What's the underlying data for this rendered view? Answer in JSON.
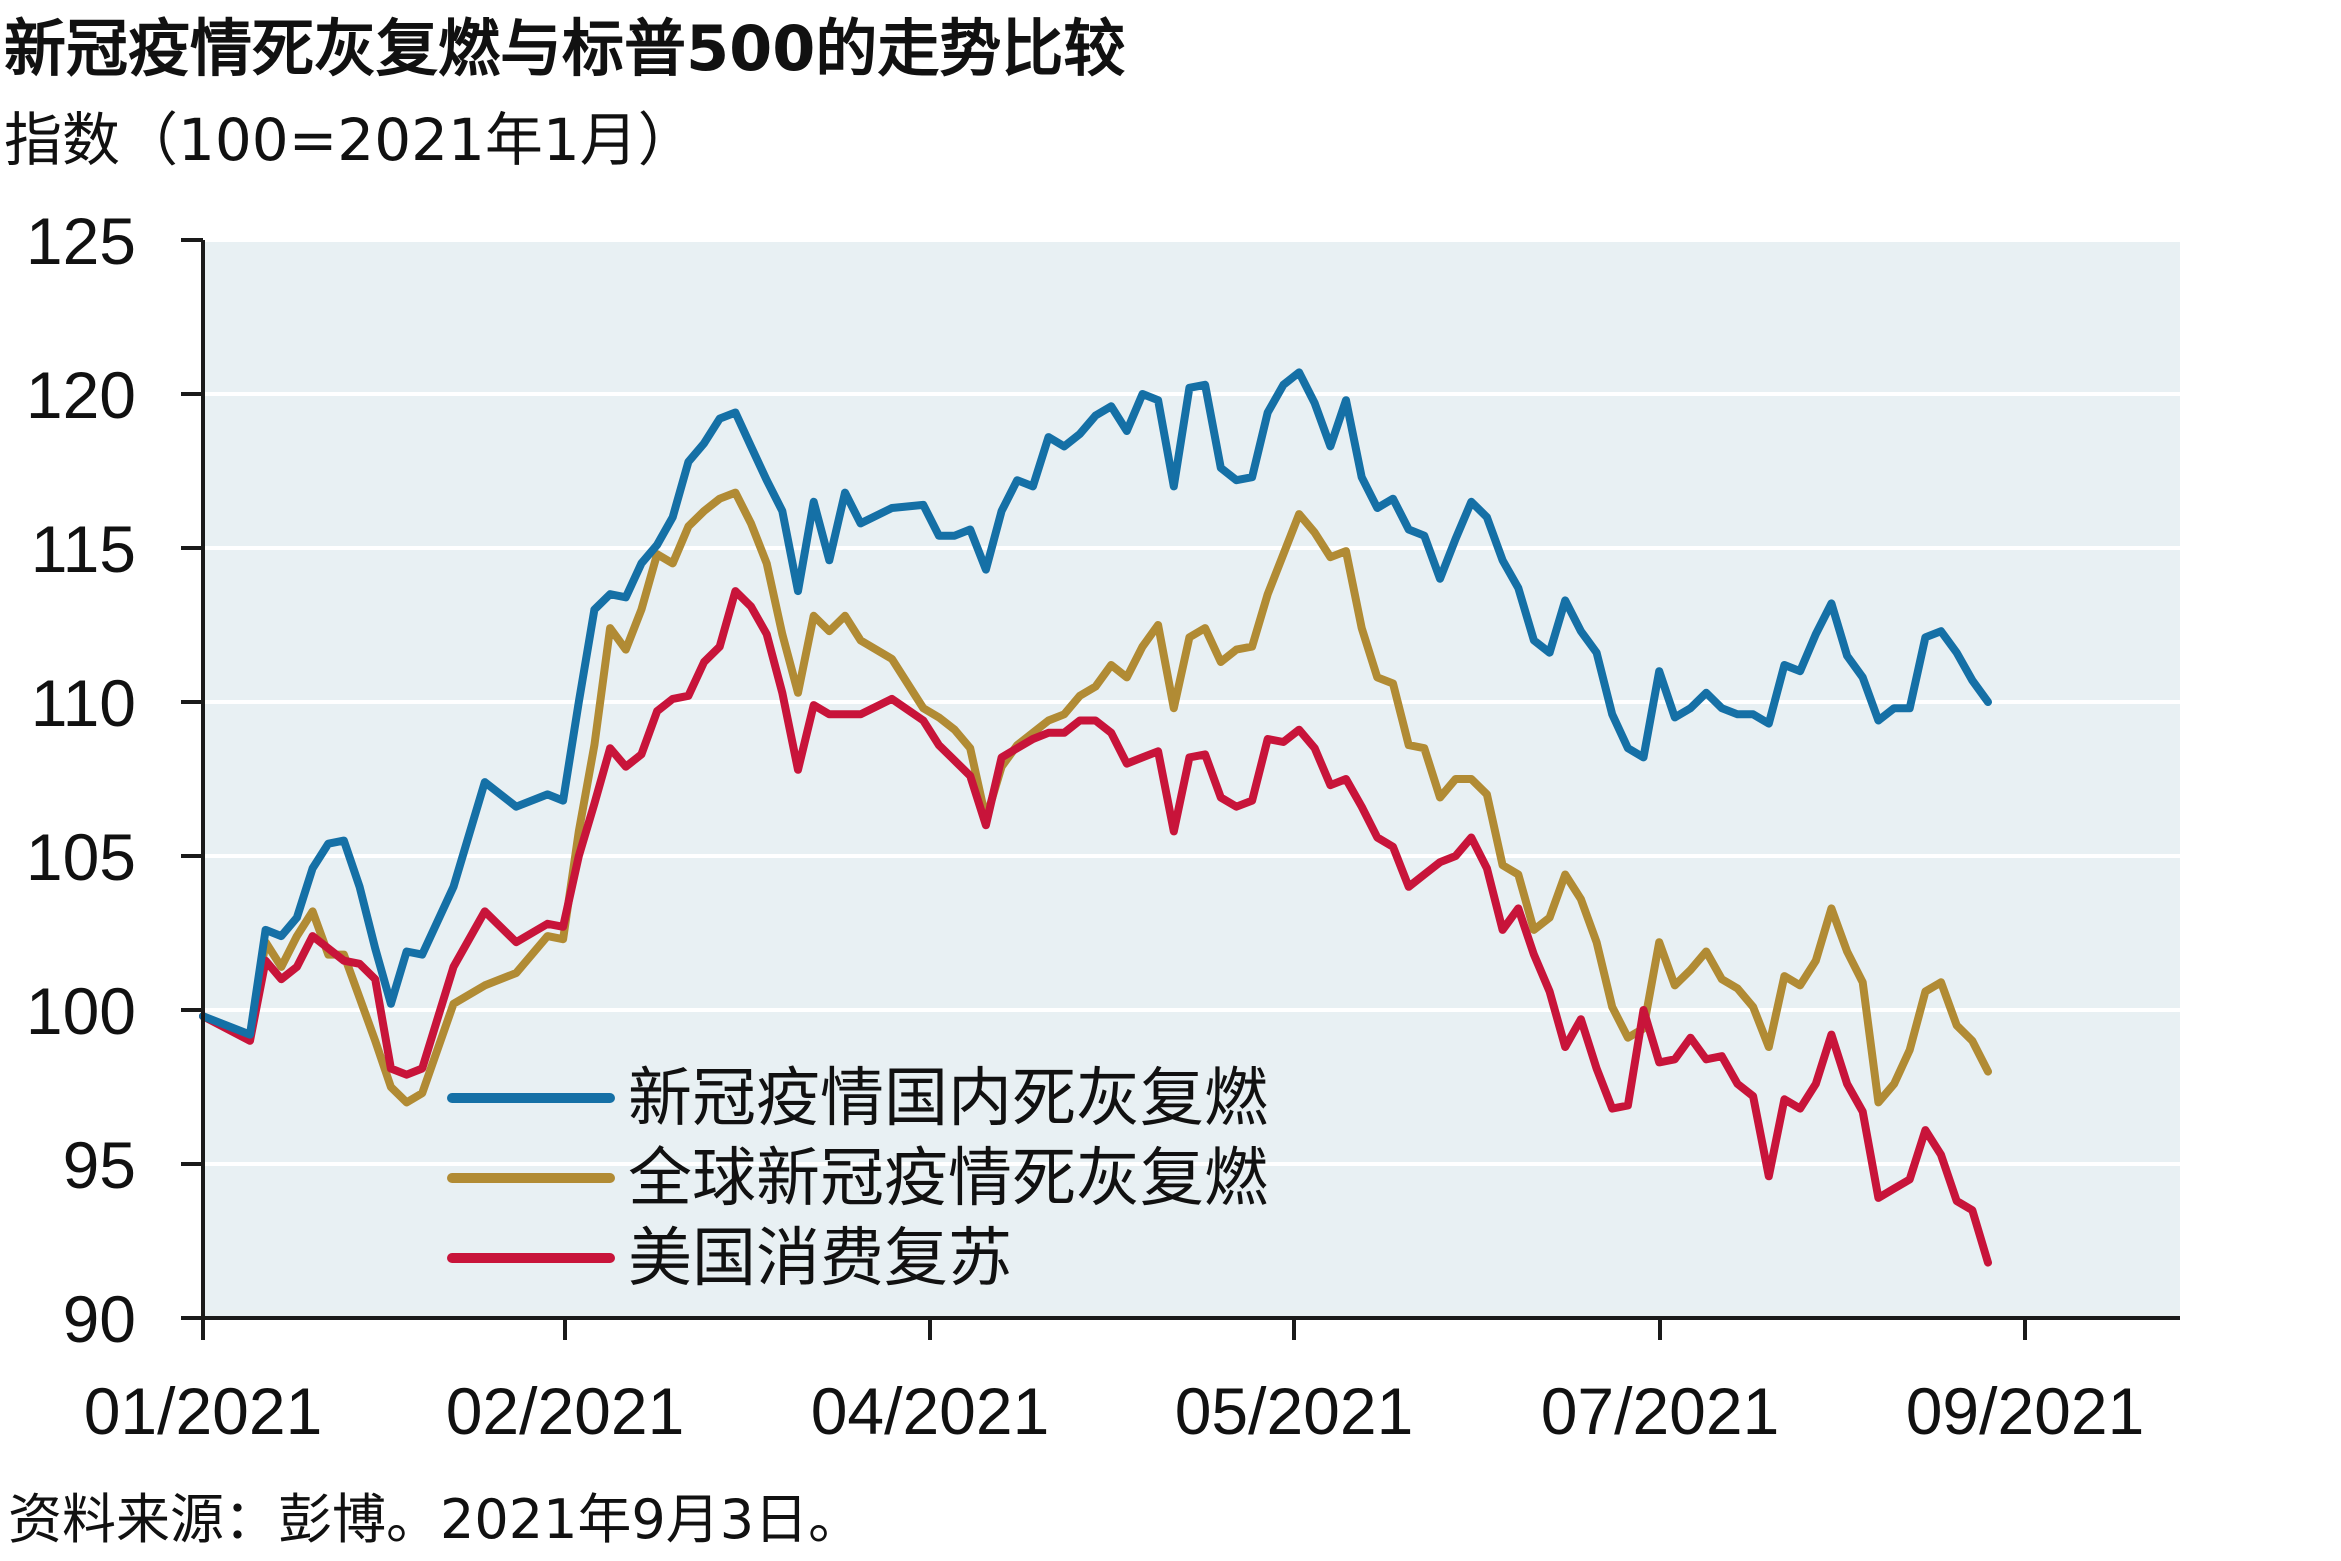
{
  "chart_data": {
    "type": "line",
    "title": "新冠疫情死灰复燃与标普500的走势比较",
    "subtitle": "指数（100=2021年1月）",
    "source": "资料来源：彭博。2021年9月3日。",
    "y_ticks": [
      "125",
      "120",
      "115",
      "110",
      "105",
      "100",
      "95",
      "90"
    ],
    "x_ticks": [
      "01/2021",
      "02/2021",
      "04/2021",
      "05/2021",
      "07/2021",
      "09/2021"
    ],
    "ylim": [
      90,
      125
    ],
    "grid": true,
    "legend_position": "bottom-left",
    "colors": {
      "background": "#e8f0f3",
      "grid": "#ffffff",
      "axis": "#1a1a1a",
      "series_1": "#1570a6",
      "series_2": "#b18b34",
      "series_3": "#c8143a"
    },
    "series": [
      {
        "name": "新冠疫情国内死灰复燃",
        "points": [
          [
            0,
            99.8
          ],
          [
            3,
            99.2
          ],
          [
            4,
            102.6
          ],
          [
            5,
            102.4
          ],
          [
            6,
            103.0
          ],
          [
            7,
            104.6
          ],
          [
            8,
            105.4
          ],
          [
            9,
            105.5
          ],
          [
            10,
            104.0
          ],
          [
            11,
            102.0
          ],
          [
            12,
            100.2
          ],
          [
            13,
            101.9
          ],
          [
            14,
            101.8
          ],
          [
            16,
            104.0
          ],
          [
            18,
            107.4
          ],
          [
            20,
            106.6
          ],
          [
            22,
            107.0
          ],
          [
            23,
            106.8
          ],
          [
            24,
            110.0
          ],
          [
            25,
            113.0
          ],
          [
            26,
            113.5
          ],
          [
            27,
            113.4
          ],
          [
            28,
            114.5
          ],
          [
            29,
            115.1
          ],
          [
            30,
            116.0
          ],
          [
            31,
            117.8
          ],
          [
            32,
            118.4
          ],
          [
            33,
            119.2
          ],
          [
            34,
            119.4
          ],
          [
            35,
            118.3
          ],
          [
            36,
            117.2
          ],
          [
            37,
            116.2
          ],
          [
            38,
            113.6
          ],
          [
            39,
            116.5
          ],
          [
            40,
            114.6
          ],
          [
            41,
            116.8
          ],
          [
            42,
            115.8
          ],
          [
            44,
            116.3
          ],
          [
            46,
            116.4
          ],
          [
            47,
            115.4
          ],
          [
            48,
            115.4
          ],
          [
            49,
            115.6
          ],
          [
            50,
            114.3
          ],
          [
            51,
            116.2
          ],
          [
            52,
            117.2
          ],
          [
            53,
            117.0
          ],
          [
            54,
            118.6
          ],
          [
            55,
            118.3
          ],
          [
            56,
            118.7
          ],
          [
            57,
            119.3
          ],
          [
            58,
            119.6
          ],
          [
            59,
            118.8
          ],
          [
            60,
            120.0
          ],
          [
            61,
            119.8
          ],
          [
            62,
            117.0
          ],
          [
            63,
            120.2
          ],
          [
            64,
            120.3
          ],
          [
            65,
            117.6
          ],
          [
            66,
            117.2
          ],
          [
            67,
            117.3
          ],
          [
            68,
            119.4
          ],
          [
            69,
            120.3
          ],
          [
            70,
            120.7
          ],
          [
            71,
            119.7
          ],
          [
            72,
            118.3
          ],
          [
            73,
            119.8
          ],
          [
            74,
            117.3
          ],
          [
            75,
            116.3
          ],
          [
            76,
            116.6
          ],
          [
            77,
            115.6
          ],
          [
            78,
            115.4
          ],
          [
            79,
            114.0
          ],
          [
            80,
            115.3
          ],
          [
            81,
            116.5
          ],
          [
            82,
            116.0
          ],
          [
            83,
            114.6
          ],
          [
            84,
            113.7
          ],
          [
            85,
            112.0
          ],
          [
            86,
            111.6
          ],
          [
            87,
            113.3
          ],
          [
            88,
            112.3
          ],
          [
            89,
            111.6
          ],
          [
            90,
            109.6
          ],
          [
            91,
            108.5
          ],
          [
            92,
            108.2
          ],
          [
            93,
            111.0
          ],
          [
            94,
            109.5
          ],
          [
            95,
            109.8
          ],
          [
            96,
            110.3
          ],
          [
            97,
            109.8
          ],
          [
            98,
            109.6
          ],
          [
            99,
            109.6
          ],
          [
            100,
            109.3
          ],
          [
            101,
            111.2
          ],
          [
            102,
            111.0
          ],
          [
            103,
            112.2
          ],
          [
            104,
            113.2
          ],
          [
            105,
            111.5
          ],
          [
            106,
            110.8
          ],
          [
            107,
            109.4
          ],
          [
            108,
            109.8
          ],
          [
            109,
            109.8
          ],
          [
            110,
            112.1
          ],
          [
            111,
            112.3
          ],
          [
            112,
            111.6
          ],
          [
            113,
            110.7
          ],
          [
            114,
            110.0
          ]
        ]
      },
      {
        "name": "全球新冠疫情死灰复燃",
        "points": [
          [
            0,
            99.8
          ],
          [
            3,
            99.1
          ],
          [
            4,
            102.2
          ],
          [
            5,
            101.4
          ],
          [
            6,
            102.4
          ],
          [
            7,
            103.2
          ],
          [
            8,
            101.8
          ],
          [
            9,
            101.8
          ],
          [
            10,
            100.4
          ],
          [
            11,
            99.0
          ],
          [
            12,
            97.5
          ],
          [
            13,
            97.0
          ],
          [
            14,
            97.3
          ],
          [
            16,
            100.2
          ],
          [
            18,
            100.8
          ],
          [
            20,
            101.2
          ],
          [
            22,
            102.4
          ],
          [
            23,
            102.3
          ],
          [
            24,
            105.8
          ],
          [
            25,
            108.6
          ],
          [
            26,
            112.4
          ],
          [
            27,
            111.7
          ],
          [
            28,
            113.0
          ],
          [
            29,
            114.8
          ],
          [
            30,
            114.5
          ],
          [
            31,
            115.7
          ],
          [
            32,
            116.2
          ],
          [
            33,
            116.6
          ],
          [
            34,
            116.8
          ],
          [
            35,
            115.8
          ],
          [
            36,
            114.5
          ],
          [
            37,
            112.2
          ],
          [
            38,
            110.3
          ],
          [
            39,
            112.8
          ],
          [
            40,
            112.3
          ],
          [
            41,
            112.8
          ],
          [
            42,
            112.0
          ],
          [
            44,
            111.4
          ],
          [
            46,
            109.8
          ],
          [
            47,
            109.5
          ],
          [
            48,
            109.1
          ],
          [
            49,
            108.5
          ],
          [
            50,
            106.2
          ],
          [
            51,
            107.9
          ],
          [
            52,
            108.6
          ],
          [
            53,
            109.0
          ],
          [
            54,
            109.4
          ],
          [
            55,
            109.6
          ],
          [
            56,
            110.2
          ],
          [
            57,
            110.5
          ],
          [
            58,
            111.2
          ],
          [
            59,
            110.8
          ],
          [
            60,
            111.8
          ],
          [
            61,
            112.5
          ],
          [
            62,
            109.8
          ],
          [
            63,
            112.1
          ],
          [
            64,
            112.4
          ],
          [
            65,
            111.3
          ],
          [
            66,
            111.7
          ],
          [
            67,
            111.8
          ],
          [
            68,
            113.5
          ],
          [
            69,
            114.8
          ],
          [
            70,
            116.1
          ],
          [
            71,
            115.5
          ],
          [
            72,
            114.7
          ],
          [
            73,
            114.9
          ],
          [
            74,
            112.4
          ],
          [
            75,
            110.8
          ],
          [
            76,
            110.6
          ],
          [
            77,
            108.6
          ],
          [
            78,
            108.5
          ],
          [
            79,
            106.9
          ],
          [
            80,
            107.5
          ],
          [
            81,
            107.5
          ],
          [
            82,
            107.0
          ],
          [
            83,
            104.7
          ],
          [
            84,
            104.4
          ],
          [
            85,
            102.6
          ],
          [
            86,
            103.0
          ],
          [
            87,
            104.4
          ],
          [
            88,
            103.6
          ],
          [
            89,
            102.2
          ],
          [
            90,
            100.1
          ],
          [
            91,
            99.1
          ],
          [
            92,
            99.4
          ],
          [
            93,
            102.2
          ],
          [
            94,
            100.8
          ],
          [
            95,
            101.3
          ],
          [
            96,
            101.9
          ],
          [
            97,
            101.0
          ],
          [
            98,
            100.7
          ],
          [
            99,
            100.1
          ],
          [
            100,
            98.8
          ],
          [
            101,
            101.1
          ],
          [
            102,
            100.8
          ],
          [
            103,
            101.6
          ],
          [
            104,
            103.3
          ],
          [
            105,
            101.9
          ],
          [
            106,
            100.9
          ],
          [
            107,
            97.0
          ],
          [
            108,
            97.6
          ],
          [
            109,
            98.7
          ],
          [
            110,
            100.6
          ],
          [
            111,
            100.9
          ],
          [
            112,
            99.5
          ],
          [
            113,
            99.0
          ],
          [
            114,
            98.0
          ]
        ]
      },
      {
        "name": "美国消费复苏",
        "points": [
          [
            0,
            99.8
          ],
          [
            3,
            99.0
          ],
          [
            4,
            101.6
          ],
          [
            5,
            101.0
          ],
          [
            6,
            101.4
          ],
          [
            7,
            102.4
          ],
          [
            8,
            102.0
          ],
          [
            9,
            101.6
          ],
          [
            10,
            101.5
          ],
          [
            11,
            101.0
          ],
          [
            12,
            98.1
          ],
          [
            13,
            97.9
          ],
          [
            14,
            98.1
          ],
          [
            16,
            101.4
          ],
          [
            18,
            103.2
          ],
          [
            20,
            102.2
          ],
          [
            22,
            102.8
          ],
          [
            23,
            102.7
          ],
          [
            24,
            105.0
          ],
          [
            25,
            106.7
          ],
          [
            26,
            108.5
          ],
          [
            27,
            107.9
          ],
          [
            28,
            108.3
          ],
          [
            29,
            109.7
          ],
          [
            30,
            110.1
          ],
          [
            31,
            110.2
          ],
          [
            32,
            111.3
          ],
          [
            33,
            111.8
          ],
          [
            34,
            113.6
          ],
          [
            35,
            113.1
          ],
          [
            36,
            112.2
          ],
          [
            37,
            110.3
          ],
          [
            38,
            107.8
          ],
          [
            39,
            109.9
          ],
          [
            40,
            109.6
          ],
          [
            41,
            109.6
          ],
          [
            42,
            109.6
          ],
          [
            44,
            110.1
          ],
          [
            46,
            109.4
          ],
          [
            47,
            108.6
          ],
          [
            48,
            108.1
          ],
          [
            49,
            107.6
          ],
          [
            50,
            106.0
          ],
          [
            51,
            108.2
          ],
          [
            52,
            108.5
          ],
          [
            53,
            108.8
          ],
          [
            54,
            109.0
          ],
          [
            55,
            109.0
          ],
          [
            56,
            109.4
          ],
          [
            57,
            109.4
          ],
          [
            58,
            109.0
          ],
          [
            59,
            108.0
          ],
          [
            60,
            108.2
          ],
          [
            61,
            108.4
          ],
          [
            62,
            105.8
          ],
          [
            63,
            108.2
          ],
          [
            64,
            108.3
          ],
          [
            65,
            106.9
          ],
          [
            66,
            106.6
          ],
          [
            67,
            106.8
          ],
          [
            68,
            108.8
          ],
          [
            69,
            108.7
          ],
          [
            70,
            109.1
          ],
          [
            71,
            108.5
          ],
          [
            72,
            107.3
          ],
          [
            73,
            107.5
          ],
          [
            74,
            106.6
          ],
          [
            75,
            105.6
          ],
          [
            76,
            105.3
          ],
          [
            77,
            104.0
          ],
          [
            78,
            104.4
          ],
          [
            79,
            104.8
          ],
          [
            80,
            105.0
          ],
          [
            81,
            105.6
          ],
          [
            82,
            104.6
          ],
          [
            83,
            102.6
          ],
          [
            84,
            103.3
          ],
          [
            85,
            101.8
          ],
          [
            86,
            100.6
          ],
          [
            87,
            98.8
          ],
          [
            88,
            99.7
          ],
          [
            89,
            98.1
          ],
          [
            90,
            96.8
          ],
          [
            91,
            96.9
          ],
          [
            92,
            100.0
          ],
          [
            93,
            98.3
          ],
          [
            94,
            98.4
          ],
          [
            95,
            99.1
          ],
          [
            96,
            98.4
          ],
          [
            97,
            98.5
          ],
          [
            98,
            97.6
          ],
          [
            99,
            97.2
          ],
          [
            100,
            94.6
          ],
          [
            101,
            97.1
          ],
          [
            102,
            96.8
          ],
          [
            103,
            97.6
          ],
          [
            104,
            99.2
          ],
          [
            105,
            97.6
          ],
          [
            106,
            96.7
          ],
          [
            107,
            93.9
          ],
          [
            108,
            94.2
          ],
          [
            109,
            94.5
          ],
          [
            110,
            96.1
          ],
          [
            111,
            95.3
          ],
          [
            112,
            93.8
          ],
          [
            113,
            93.5
          ],
          [
            114,
            91.8
          ]
        ]
      }
    ]
  }
}
